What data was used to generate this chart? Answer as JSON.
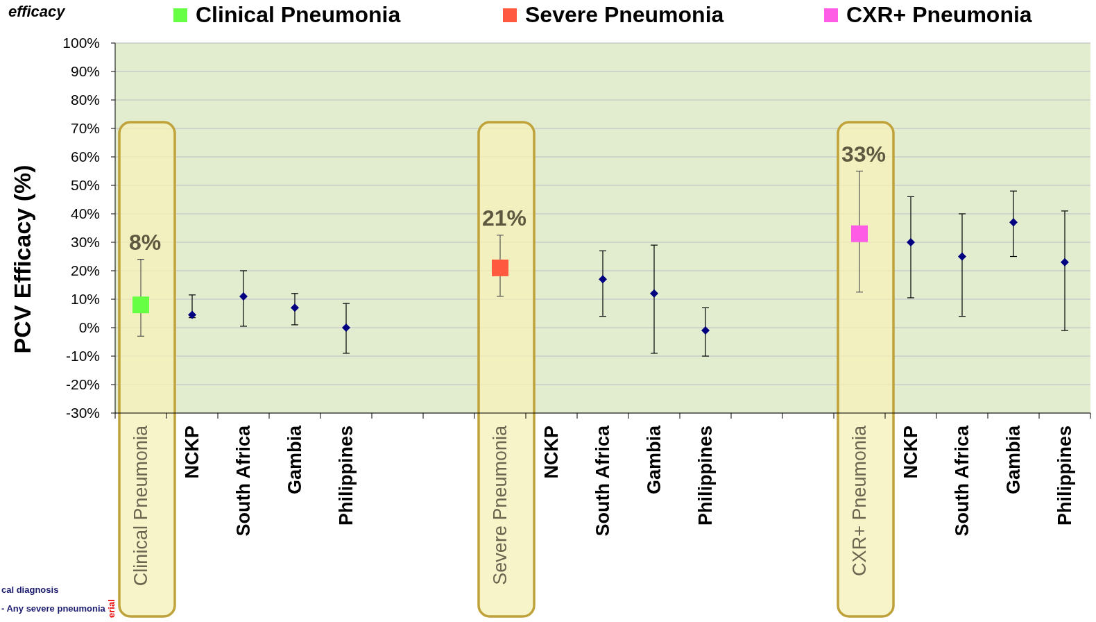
{
  "chart_data": {
    "type": "scatter",
    "title": "efficacy",
    "ylabel": "PCV Efficacy (%)",
    "categories": [
      "Clinical Pneumonia",
      "NCKP",
      "South Africa",
      "Gambia",
      "Philippines",
      null,
      null,
      "Severe Pneumonia",
      "NCKP",
      "South Africa",
      "Gambia",
      "Philippines",
      null,
      null,
      "CXR+ Pneumonia",
      "NCKP",
      "South Africa",
      "Gambia",
      "Philippines"
    ],
    "series": [
      {
        "name": "Clinical Pneumonia",
        "color": "#66ff44",
        "marker": "square",
        "values": [
          8,
          null,
          null,
          null,
          null,
          null,
          null,
          null,
          null,
          null,
          null,
          null,
          null,
          null,
          null,
          null,
          null,
          null,
          null
        ],
        "errors": [
          [
            -3,
            24
          ],
          null,
          null,
          null,
          null,
          null,
          null,
          null,
          null,
          null,
          null,
          null,
          null,
          null,
          null,
          null,
          null,
          null,
          null
        ],
        "value_labels": [
          "8%",
          null,
          null,
          null,
          null,
          null,
          null,
          null,
          null,
          null,
          null,
          null,
          null,
          null,
          null,
          null,
          null,
          null,
          null
        ]
      },
      {
        "name": "Severe Pneumonia",
        "color": "#ff5a40",
        "marker": "square",
        "values": [
          null,
          null,
          null,
          null,
          null,
          null,
          null,
          21,
          null,
          null,
          null,
          null,
          null,
          null,
          null,
          null,
          null,
          null,
          null
        ],
        "errors": [
          null,
          null,
          null,
          null,
          null,
          null,
          null,
          [
            11,
            32.5
          ],
          null,
          null,
          null,
          null,
          null,
          null,
          null,
          null,
          null,
          null,
          null
        ],
        "value_labels": [
          null,
          null,
          null,
          null,
          null,
          null,
          null,
          "21%",
          null,
          null,
          null,
          null,
          null,
          null,
          null,
          null,
          null,
          null,
          null
        ]
      },
      {
        "name": "CXR+ Pneumonia",
        "color": "#ff5ce6",
        "marker": "square",
        "values": [
          null,
          null,
          null,
          null,
          null,
          null,
          null,
          null,
          null,
          null,
          null,
          null,
          null,
          null,
          33,
          null,
          null,
          null,
          null
        ],
        "errors": [
          null,
          null,
          null,
          null,
          null,
          null,
          null,
          null,
          null,
          null,
          null,
          null,
          null,
          null,
          [
            12.5,
            55
          ],
          null,
          null,
          null,
          null
        ],
        "value_labels": [
          null,
          null,
          null,
          null,
          null,
          null,
          null,
          null,
          null,
          null,
          null,
          null,
          null,
          null,
          "33%",
          null,
          null,
          null,
          null
        ]
      },
      {
        "color": "#000080",
        "marker": "diamond",
        "values": [
          null,
          4.5,
          11,
          7,
          0,
          null,
          null,
          null,
          null,
          17,
          12,
          -1,
          null,
          null,
          null,
          30,
          25,
          37,
          23
        ],
        "errors": [
          null,
          [
            3.5,
            11.5
          ],
          [
            0.5,
            20
          ],
          [
            1,
            12
          ],
          [
            -9,
            8.5
          ],
          null,
          null,
          null,
          null,
          [
            4,
            27
          ],
          [
            -9,
            29
          ],
          [
            -10,
            7
          ],
          null,
          null,
          null,
          [
            10.5,
            46
          ],
          [
            4,
            40
          ],
          [
            25,
            48
          ],
          [
            -1,
            41
          ]
        ]
      }
    ],
    "ylim": [
      -30,
      100
    ],
    "yticks": [
      {
        "value": -30,
        "label": "-30%"
      },
      {
        "value": -20,
        "label": "-20%"
      },
      {
        "value": -10,
        "label": "-10%"
      },
      {
        "value": 0,
        "label": "0%"
      },
      {
        "value": 10,
        "label": "10%"
      },
      {
        "value": 20,
        "label": "20%"
      },
      {
        "value": 30,
        "label": "30%"
      },
      {
        "value": 40,
        "label": "40%"
      },
      {
        "value": 50,
        "label": "50%"
      },
      {
        "value": 60,
        "label": "60%"
      },
      {
        "value": 70,
        "label": "70%"
      },
      {
        "value": 80,
        "label": "80%"
      },
      {
        "value": 90,
        "label": "90%"
      },
      {
        "value": 100,
        "label": "100%"
      }
    ],
    "bands": [
      {
        "axis": "x",
        "from": "Clinical Pneumonia",
        "to": "Clinical Pneumonia",
        "color": "#f5f0b8"
      },
      {
        "axis": "x",
        "from": "Severe Pneumonia",
        "to": "Severe Pneumonia",
        "color": "#f5f0b8"
      },
      {
        "axis": "x",
        "from": "CXR+ Pneumonia",
        "to": "CXR+ Pneumonia",
        "color": "#f5f0b8"
      }
    ],
    "annotations": [
      "cal diagnosis",
      "- Any severe pneumonia",
      "erial"
    ],
    "grid": "y",
    "legend": "top"
  }
}
